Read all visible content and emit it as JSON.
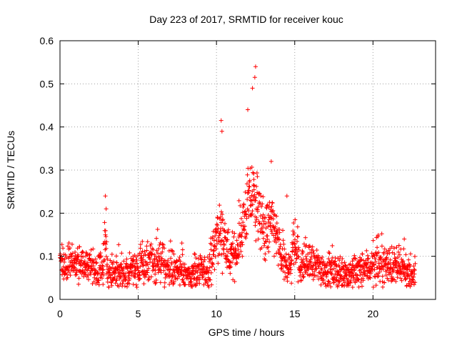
{
  "chart_data": {
    "type": "scatter",
    "title": "Day 223 of 2017, SRMTID for receiver kouc",
    "xlabel": "GPS time / hours",
    "ylabel": "SRMTID / TECUs",
    "xlim": [
      0,
      24
    ],
    "ylim": [
      0,
      0.6
    ],
    "xticks": [
      0,
      5,
      10,
      15,
      20
    ],
    "yticks": [
      0,
      0.1,
      0.2,
      0.3,
      0.4,
      0.5,
      0.6
    ],
    "xtick_labels": [
      "0",
      "5",
      "10",
      "15",
      "20"
    ],
    "ytick_labels": [
      "0",
      "0.1",
      "0.2",
      "0.3",
      "0.4",
      "0.5",
      "0.6"
    ],
    "grid": true,
    "marker": "+",
    "color": "#ff0000",
    "series": [
      {
        "name": "SRMTID",
        "x_range": [
          0,
          22.7
        ],
        "background_mean": 0.07,
        "notable_points": [
          {
            "x": 2.9,
            "y": 0.24
          },
          {
            "x": 2.95,
            "y": 0.21
          },
          {
            "x": 10.3,
            "y": 0.415
          },
          {
            "x": 10.35,
            "y": 0.39
          },
          {
            "x": 12.0,
            "y": 0.44
          },
          {
            "x": 12.5,
            "y": 0.54
          },
          {
            "x": 12.45,
            "y": 0.515
          },
          {
            "x": 12.3,
            "y": 0.49
          },
          {
            "x": 13.5,
            "y": 0.32
          },
          {
            "x": 14.5,
            "y": 0.24
          },
          {
            "x": 22.0,
            "y": 0.14
          }
        ]
      }
    ]
  }
}
